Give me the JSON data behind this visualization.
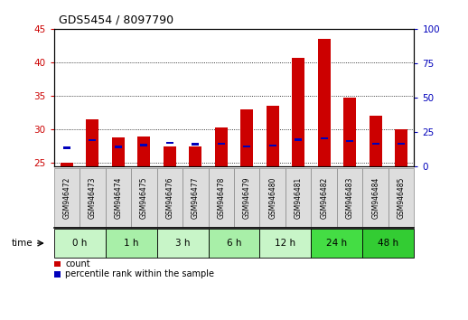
{
  "title": "GDS5454 / 8097790",
  "samples": [
    "GSM946472",
    "GSM946473",
    "GSM946474",
    "GSM946475",
    "GSM946476",
    "GSM946477",
    "GSM946478",
    "GSM946479",
    "GSM946480",
    "GSM946481",
    "GSM946482",
    "GSM946483",
    "GSM946484",
    "GSM946485"
  ],
  "count_values": [
    25.0,
    31.5,
    28.8,
    29.0,
    27.5,
    27.5,
    30.3,
    33.0,
    33.5,
    40.7,
    43.5,
    34.7,
    32.0,
    30.0
  ],
  "percentile_values": [
    27.3,
    28.4,
    27.4,
    27.7,
    28.0,
    27.8,
    27.9,
    27.5,
    27.6,
    28.5,
    28.7,
    28.3,
    27.9,
    27.9
  ],
  "time_groups": [
    {
      "label": "0 h",
      "indices": [
        0,
        1
      ],
      "color": "#c8f5c8"
    },
    {
      "label": "1 h",
      "indices": [
        2,
        3
      ],
      "color": "#a8efa8"
    },
    {
      "label": "3 h",
      "indices": [
        4,
        5
      ],
      "color": "#c8f5c8"
    },
    {
      "label": "6 h",
      "indices": [
        6,
        7
      ],
      "color": "#a8efa8"
    },
    {
      "label": "12 h",
      "indices": [
        8,
        9
      ],
      "color": "#c8f5c8"
    },
    {
      "label": "24 h",
      "indices": [
        10,
        11
      ],
      "color": "#44dd44"
    },
    {
      "label": "48 h",
      "indices": [
        12,
        13
      ],
      "color": "#33cc33"
    }
  ],
  "ylim_left": [
    24.5,
    45
  ],
  "ylim_right": [
    0,
    100
  ],
  "yticks_left": [
    25,
    30,
    35,
    40,
    45
  ],
  "yticks_right": [
    0,
    25,
    50,
    75,
    100
  ],
  "bar_color_red": "#cc0000",
  "bar_color_blue": "#0000bb",
  "bar_width": 0.5,
  "bg_color": "#ffffff",
  "plot_bg": "#ffffff",
  "left_tick_color": "#cc0000",
  "right_tick_color": "#0000bb",
  "legend_count_color": "#cc0000",
  "legend_pct_color": "#0000bb",
  "sample_box_color": "#dddddd",
  "sample_box_edge": "#888888"
}
